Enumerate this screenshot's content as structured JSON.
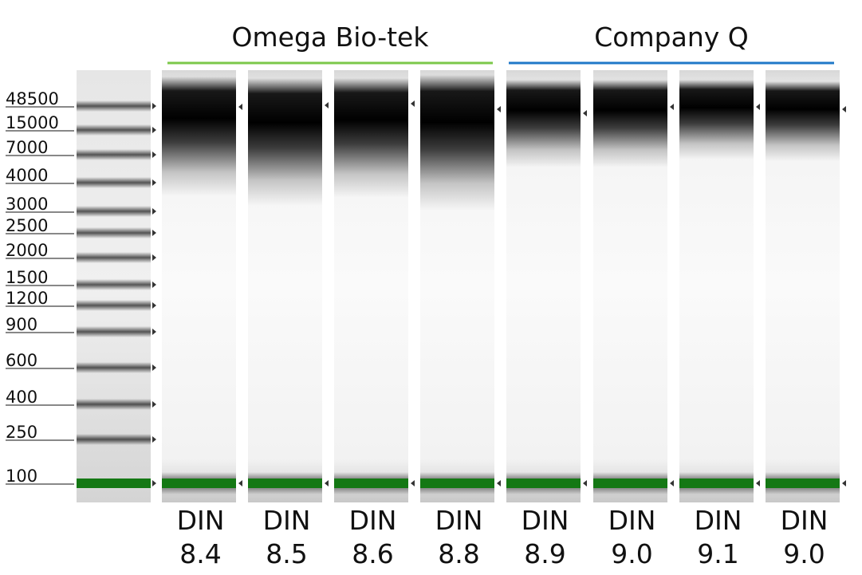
{
  "groups": [
    {
      "name": "Omega Bio-tek"
    },
    {
      "name": "Company Q"
    }
  ],
  "ladder": [
    "48500",
    "15000",
    "7000",
    "4000",
    "3000",
    "2500",
    "2000",
    "1500",
    "1200",
    "900",
    "600",
    "400",
    "250",
    "100"
  ],
  "lanes": [
    {
      "label": "DIN",
      "value": "8.4"
    },
    {
      "label": "DIN",
      "value": "8.5"
    },
    {
      "label": "DIN",
      "value": "8.6"
    },
    {
      "label": "DIN",
      "value": "8.8"
    },
    {
      "label": "DIN",
      "value": "8.9"
    },
    {
      "label": "DIN",
      "value": "9.0"
    },
    {
      "label": "DIN",
      "value": "9.1"
    },
    {
      "label": "DIN",
      "value": "9.0"
    }
  ]
}
